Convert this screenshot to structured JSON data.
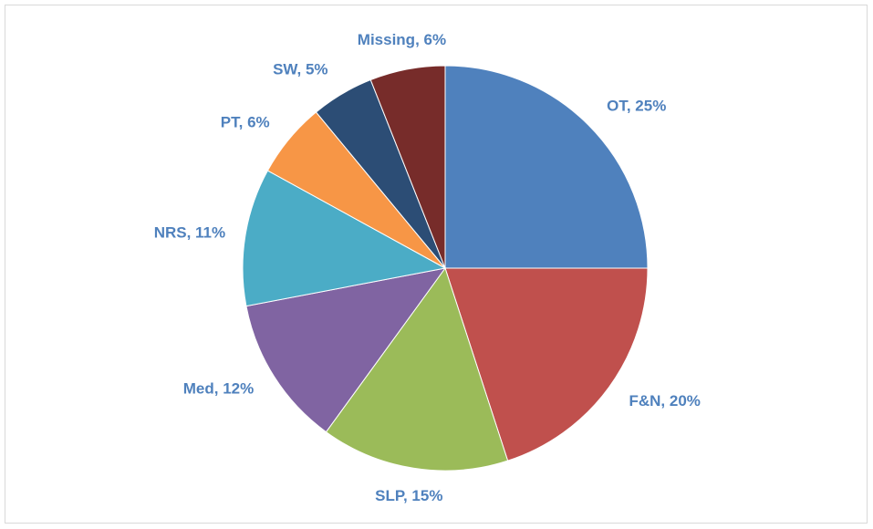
{
  "chart_data": {
    "type": "pie",
    "values": [
      25,
      20,
      15,
      12,
      11,
      6,
      5,
      6
    ],
    "value_labels": [
      "OT, 25%",
      "F&N, 20%",
      "SLP, 15%",
      "Med, 12%",
      "NRS, 11%",
      "PT, 6%",
      "SW, 5%",
      "Missing, 6%"
    ],
    "colors": [
      "#4f81bd",
      "#c0504d",
      "#9bbb59",
      "#8064a2",
      "#4bacc6",
      "#f79646",
      "#2c4d75",
      "#772c2a"
    ],
    "label_color": "#4f81bd"
  }
}
